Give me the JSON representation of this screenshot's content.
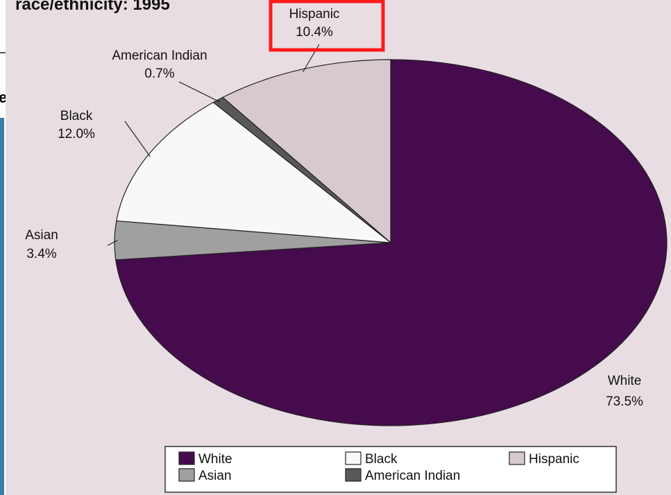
{
  "slide": {
    "edge_fragment": "e"
  },
  "colors": {
    "background": "#e8dde3",
    "highlight": "#ff1a1a",
    "white": "#450b4d",
    "black": "#f8f8f8",
    "hispanic": "#d8c9d1",
    "asian": "#a0a0a0",
    "american_indian": "#585858"
  },
  "chart_data": {
    "type": "pie",
    "title": "race/ethnicity:  1995",
    "slices": [
      {
        "key": "white",
        "name": "White",
        "value": 73.5,
        "label": "73.5%"
      },
      {
        "key": "asian",
        "name": "Asian",
        "value": 3.4,
        "label": "3.4%"
      },
      {
        "key": "black",
        "name": "Black",
        "value": 12.0,
        "label": "12.0%"
      },
      {
        "key": "american_indian",
        "name": "American Indian",
        "value": 0.7,
        "label": "0.7%"
      },
      {
        "key": "hispanic",
        "name": "Hispanic",
        "value": 10.4,
        "label": "10.4%"
      }
    ],
    "highlighted_label": "Hispanic",
    "legend": {
      "placement": "bottom",
      "items": [
        "White",
        "Black",
        "Hispanic",
        "Asian",
        "American Indian"
      ]
    }
  }
}
